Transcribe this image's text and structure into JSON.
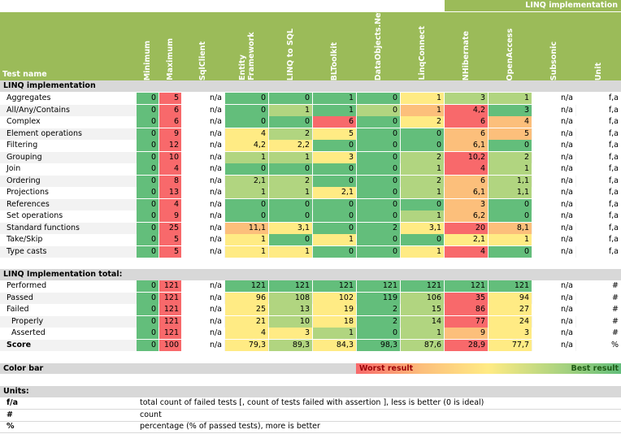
{
  "banner": "LINQ implementation",
  "header": {
    "test_name": "Test name",
    "columns": [
      "Minimum",
      "Maximum",
      "SqlClient",
      "Entity Framework",
      "LINQ to SQL",
      "BLToolkit",
      "DataObjects.Net",
      "LinqConnect",
      "NHibernate",
      "OpenAccess",
      "Subsonic",
      "Unit"
    ]
  },
  "section1": {
    "title": "LINQ implementation",
    "rows": [
      {
        "name": "Aggregates",
        "values": [
          "0",
          "5",
          "n/a",
          "0",
          "0",
          "1",
          "0",
          "1",
          "3",
          "1",
          "n/a",
          "f,a"
        ]
      },
      {
        "name": "All/Any/Contains",
        "values": [
          "0",
          "6",
          "n/a",
          "0",
          "1",
          "1",
          "0",
          "1",
          "4,2",
          "3",
          "n/a",
          "f,a"
        ]
      },
      {
        "name": "Complex",
        "values": [
          "0",
          "6",
          "n/a",
          "0",
          "0",
          "6",
          "0",
          "2",
          "6",
          "4",
          "n/a",
          "f,a"
        ]
      },
      {
        "name": "Element operations",
        "values": [
          "0",
          "9",
          "n/a",
          "4",
          "2",
          "5",
          "0",
          "0",
          "6",
          "5",
          "n/a",
          "f,a"
        ]
      },
      {
        "name": "Filtering",
        "values": [
          "0",
          "12",
          "n/a",
          "4,2",
          "2,2",
          "0",
          "0",
          "0",
          "6,1",
          "0",
          "n/a",
          "f,a"
        ]
      },
      {
        "name": "Grouping",
        "values": [
          "0",
          "10",
          "n/a",
          "1",
          "1",
          "3",
          "0",
          "2",
          "10,2",
          "2",
          "n/a",
          "f,a"
        ]
      },
      {
        "name": "Join",
        "values": [
          "0",
          "4",
          "n/a",
          "0",
          "0",
          "0",
          "0",
          "1",
          "4",
          "1",
          "n/a",
          "f,a"
        ]
      },
      {
        "name": "Ordering",
        "values": [
          "0",
          "8",
          "n/a",
          "2,1",
          "2",
          "0",
          "0",
          "2",
          "6",
          "1,1",
          "n/a",
          "f,a"
        ]
      },
      {
        "name": "Projections",
        "values": [
          "0",
          "13",
          "n/a",
          "1",
          "1",
          "2,1",
          "0",
          "1",
          "6,1",
          "1,1",
          "n/a",
          "f,a"
        ]
      },
      {
        "name": "References",
        "values": [
          "0",
          "4",
          "n/a",
          "0",
          "0",
          "0",
          "0",
          "0",
          "3",
          "0",
          "n/a",
          "f,a"
        ]
      },
      {
        "name": "Set operations",
        "values": [
          "0",
          "9",
          "n/a",
          "0",
          "0",
          "0",
          "0",
          "1",
          "6,2",
          "0",
          "n/a",
          "f,a"
        ]
      },
      {
        "name": "Standard functions",
        "values": [
          "0",
          "25",
          "n/a",
          "11,1",
          "3,1",
          "0",
          "2",
          "3,1",
          "20",
          "8,1",
          "n/a",
          "f,a"
        ]
      },
      {
        "name": "Take/Skip",
        "values": [
          "0",
          "5",
          "n/a",
          "1",
          "0",
          "1",
          "0",
          "0",
          "2,1",
          "1",
          "n/a",
          "f,a"
        ]
      },
      {
        "name": "Type casts",
        "values": [
          "0",
          "5",
          "n/a",
          "1",
          "1",
          "0",
          "0",
          "1",
          "4",
          "0",
          "n/a",
          "f,a"
        ]
      }
    ]
  },
  "section2": {
    "title": "LINQ Implementation total:",
    "rows": [
      {
        "name": "Performed",
        "values": [
          "0",
          "121",
          "n/a",
          "121",
          "121",
          "121",
          "121",
          "121",
          "121",
          "121",
          "n/a",
          "#"
        ]
      },
      {
        "name": "Passed",
        "values": [
          "0",
          "121",
          "n/a",
          "96",
          "108",
          "102",
          "119",
          "106",
          "35",
          "94",
          "n/a",
          "#"
        ]
      },
      {
        "name": "Failed",
        "values": [
          "0",
          "121",
          "n/a",
          "25",
          "13",
          "19",
          "2",
          "15",
          "86",
          "27",
          "n/a",
          "#"
        ]
      },
      {
        "name": "Properly",
        "values": [
          "0",
          "121",
          "n/a",
          "21",
          "10",
          "18",
          "2",
          "14",
          "77",
          "24",
          "n/a",
          "#"
        ]
      },
      {
        "name": "Asserted",
        "values": [
          "0",
          "121",
          "n/a",
          "4",
          "3",
          "1",
          "0",
          "1",
          "9",
          "3",
          "n/a",
          "#"
        ]
      },
      {
        "name": "Score",
        "values": [
          "0",
          "100",
          "n/a",
          "79,3",
          "89,3",
          "84,3",
          "98,3",
          "87,6",
          "28,9",
          "77,7",
          "n/a",
          "%"
        ]
      }
    ]
  },
  "colorbar": {
    "label": "Color bar",
    "worst": "Worst result",
    "best": "Best result"
  },
  "units": {
    "title": "Units:",
    "items": [
      {
        "key": "f/a",
        "desc": "total count of failed tests [, count of tests failed with assertion ], less is better (0 is ideal)"
      },
      {
        "key": "#",
        "desc": "count"
      },
      {
        "key": "%",
        "desc": "percentage (% of passed tests), more is better"
      }
    ]
  },
  "colors": {
    "header_green": "#9bbb59",
    "min_green": "#63be7b",
    "max_red": "#f8696b",
    "band_gray": "#d8d8d8",
    "scale": [
      "#63be7b",
      "#b1d580",
      "#ffeb84",
      "#fcbf7b",
      "#f8696b"
    ]
  },
  "cell_tones": {
    "section1": [
      [
        0,
        0,
        0,
        0,
        2,
        1,
        1
      ],
      [
        0,
        1,
        0,
        1,
        3,
        4,
        0
      ],
      [
        0,
        0,
        4,
        0,
        2,
        4,
        3
      ],
      [
        2,
        1,
        2,
        0,
        0,
        3,
        3
      ],
      [
        2,
        2,
        0,
        0,
        0,
        3,
        0
      ],
      [
        1,
        1,
        2,
        0,
        1,
        4,
        1
      ],
      [
        0,
        0,
        0,
        0,
        1,
        4,
        1
      ],
      [
        1,
        1,
        0,
        0,
        1,
        3,
        1
      ],
      [
        1,
        1,
        2,
        0,
        1,
        3,
        1
      ],
      [
        0,
        0,
        0,
        0,
        0,
        3,
        0
      ],
      [
        0,
        0,
        0,
        0,
        1,
        3,
        0
      ],
      [
        3,
        2,
        0,
        0,
        2,
        4,
        3
      ],
      [
        2,
        0,
        2,
        0,
        0,
        2,
        2
      ],
      [
        2,
        2,
        0,
        0,
        2,
        4,
        0
      ]
    ],
    "section2": [
      [
        0,
        0,
        0,
        0,
        0,
        0,
        0
      ],
      [
        2,
        1,
        2,
        0,
        1,
        4,
        2
      ],
      [
        2,
        1,
        2,
        0,
        1,
        4,
        2
      ],
      [
        2,
        1,
        2,
        0,
        1,
        4,
        2
      ],
      [
        2,
        2,
        1,
        0,
        1,
        3,
        2
      ],
      [
        2,
        1,
        2,
        0,
        1,
        4,
        2
      ]
    ]
  }
}
